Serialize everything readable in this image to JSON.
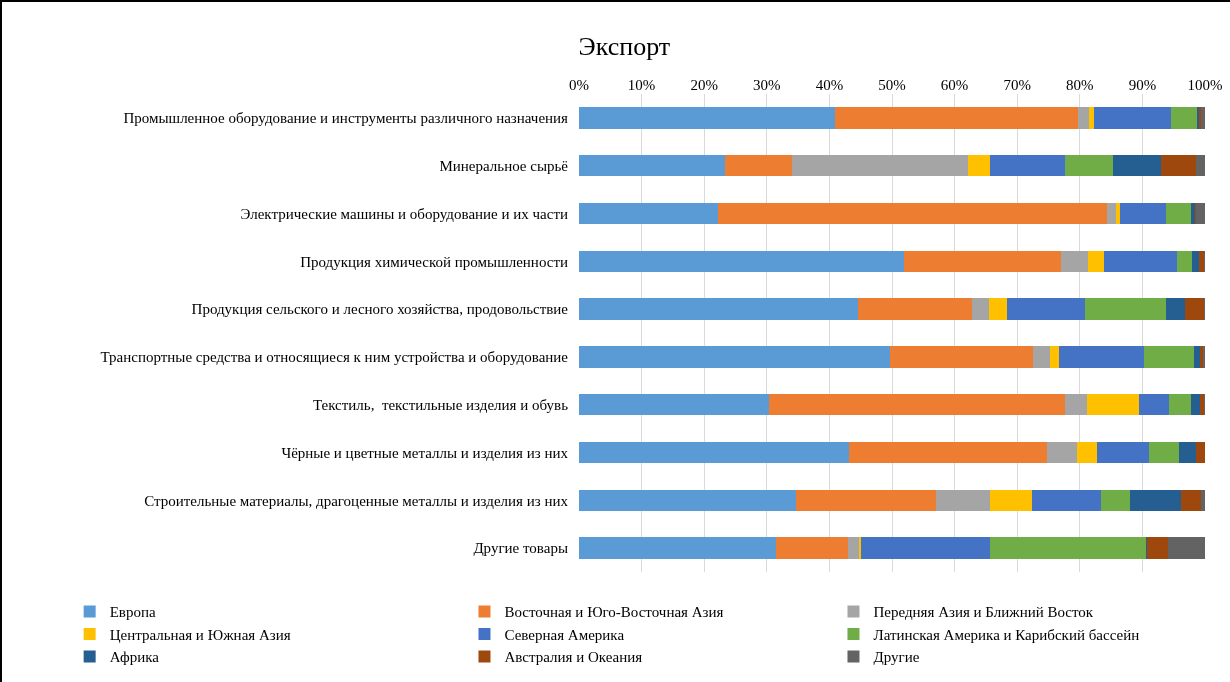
{
  "chart_data": {
    "type": "bar",
    "orientation": "horizontal",
    "stacked": true,
    "title": "Экспорт",
    "categories": [
      "Промышленное оборудование и инструменты различного назначения",
      "Минеральное сырьё",
      "Электрические машины и оборудование и их части",
      "Продукция химической промышленности",
      "Продукция сельского и лесного хозяйства, продовольствие",
      "Транспортные средства и относящиеся к ним устройства и оборудование",
      "Текстиль,  текстильные изделия и обувь",
      "Чёрные и цветные металлы и изделия из них",
      "Строительные материалы, драгоценные металлы и изделия из них",
      "Другие товары"
    ],
    "series": [
      {
        "name": "Европа",
        "color": "#5b9bd5",
        "values": [
          40.9,
          23.3,
          22.2,
          51.9,
          44.5,
          49.7,
          30.3,
          43.2,
          34.6,
          31.5
        ]
      },
      {
        "name": "Восточная и Юго-Восточная Азия",
        "color": "#ed7d31",
        "values": [
          38.8,
          10.7,
          62.2,
          25.1,
          18.2,
          22.9,
          47.4,
          31.6,
          22.4,
          11.5
        ]
      },
      {
        "name": "Передняя Азия и Ближний Восток",
        "color": "#a5a5a5",
        "values": [
          1.7,
          28.2,
          1.4,
          4.3,
          2.8,
          2.7,
          3.5,
          4.8,
          8.7,
          1.7
        ]
      },
      {
        "name": "Центральная и Южная Азия",
        "color": "#ffc000",
        "values": [
          0.9,
          3.5,
          0.6,
          2.6,
          2.8,
          1.3,
          8.2,
          3.1,
          6.6,
          0.4
        ]
      },
      {
        "name": "Северная Америка",
        "color": "#4472c4",
        "values": [
          12.3,
          11.9,
          7.4,
          11.7,
          12.6,
          13.7,
          4.8,
          8.3,
          11.1,
          20.6
        ]
      },
      {
        "name": "Латинская Америка и Карибский бассейн",
        "color": "#70ad47",
        "values": [
          4.2,
          7.7,
          4.0,
          2.4,
          12.8,
          7.9,
          3.5,
          4.8,
          4.6,
          24.8
        ]
      },
      {
        "name": "Африка",
        "color": "#255e91",
        "values": [
          0.2,
          7.7,
          0.6,
          1.1,
          3.1,
          1.0,
          1.5,
          2.8,
          8.1,
          0.2
        ]
      },
      {
        "name": "Австралия и Океания",
        "color": "#9e480e",
        "values": [
          0.4,
          5.6,
          0.2,
          0.8,
          3.0,
          0.4,
          0.7,
          1.4,
          3.2,
          3.4
        ]
      },
      {
        "name": "Другие",
        "color": "#636363",
        "values": [
          0.6,
          1.4,
          1.4,
          0.1,
          0.2,
          0.4,
          0.1,
          0.0,
          0.7,
          5.9
        ]
      }
    ],
    "xlim": [
      0,
      100
    ],
    "xticks": [
      {
        "value": 0,
        "label": "0%"
      },
      {
        "value": 10,
        "label": "10%"
      },
      {
        "value": 20,
        "label": "20%"
      },
      {
        "value": 30,
        "label": "30%"
      },
      {
        "value": 40,
        "label": "40%"
      },
      {
        "value": 50,
        "label": "50%"
      },
      {
        "value": 60,
        "label": "60%"
      },
      {
        "value": 70,
        "label": "70%"
      },
      {
        "value": 80,
        "label": "80%"
      },
      {
        "value": 90,
        "label": "90%"
      },
      {
        "value": 100,
        "label": "100%"
      }
    ],
    "grid": "x",
    "legend": "bottom"
  }
}
